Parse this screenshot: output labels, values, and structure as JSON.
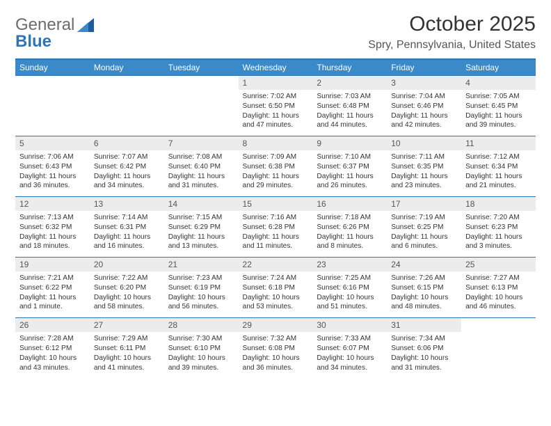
{
  "brand": {
    "line1": "General",
    "line2": "Blue"
  },
  "colors": {
    "accent": "#2e75b6",
    "header_bg": "#3a8ac9",
    "header_fg": "#ffffff",
    "daynum_bg": "#ececec",
    "text": "#333333",
    "brand_gray": "#6b6b6b",
    "brand_blue": "#2e75b6"
  },
  "title": "October 2025",
  "location": "Spry, Pennsylvania, United States",
  "weekdays": [
    "Sunday",
    "Monday",
    "Tuesday",
    "Wednesday",
    "Thursday",
    "Friday",
    "Saturday"
  ],
  "weeks": [
    [
      {
        "n": "",
        "sr": "",
        "ss": "",
        "dl": ""
      },
      {
        "n": "",
        "sr": "",
        "ss": "",
        "dl": ""
      },
      {
        "n": "",
        "sr": "",
        "ss": "",
        "dl": ""
      },
      {
        "n": "1",
        "sr": "Sunrise: 7:02 AM",
        "ss": "Sunset: 6:50 PM",
        "dl": "Daylight: 11 hours and 47 minutes."
      },
      {
        "n": "2",
        "sr": "Sunrise: 7:03 AM",
        "ss": "Sunset: 6:48 PM",
        "dl": "Daylight: 11 hours and 44 minutes."
      },
      {
        "n": "3",
        "sr": "Sunrise: 7:04 AM",
        "ss": "Sunset: 6:46 PM",
        "dl": "Daylight: 11 hours and 42 minutes."
      },
      {
        "n": "4",
        "sr": "Sunrise: 7:05 AM",
        "ss": "Sunset: 6:45 PM",
        "dl": "Daylight: 11 hours and 39 minutes."
      }
    ],
    [
      {
        "n": "5",
        "sr": "Sunrise: 7:06 AM",
        "ss": "Sunset: 6:43 PM",
        "dl": "Daylight: 11 hours and 36 minutes."
      },
      {
        "n": "6",
        "sr": "Sunrise: 7:07 AM",
        "ss": "Sunset: 6:42 PM",
        "dl": "Daylight: 11 hours and 34 minutes."
      },
      {
        "n": "7",
        "sr": "Sunrise: 7:08 AM",
        "ss": "Sunset: 6:40 PM",
        "dl": "Daylight: 11 hours and 31 minutes."
      },
      {
        "n": "8",
        "sr": "Sunrise: 7:09 AM",
        "ss": "Sunset: 6:38 PM",
        "dl": "Daylight: 11 hours and 29 minutes."
      },
      {
        "n": "9",
        "sr": "Sunrise: 7:10 AM",
        "ss": "Sunset: 6:37 PM",
        "dl": "Daylight: 11 hours and 26 minutes."
      },
      {
        "n": "10",
        "sr": "Sunrise: 7:11 AM",
        "ss": "Sunset: 6:35 PM",
        "dl": "Daylight: 11 hours and 23 minutes."
      },
      {
        "n": "11",
        "sr": "Sunrise: 7:12 AM",
        "ss": "Sunset: 6:34 PM",
        "dl": "Daylight: 11 hours and 21 minutes."
      }
    ],
    [
      {
        "n": "12",
        "sr": "Sunrise: 7:13 AM",
        "ss": "Sunset: 6:32 PM",
        "dl": "Daylight: 11 hours and 18 minutes."
      },
      {
        "n": "13",
        "sr": "Sunrise: 7:14 AM",
        "ss": "Sunset: 6:31 PM",
        "dl": "Daylight: 11 hours and 16 minutes."
      },
      {
        "n": "14",
        "sr": "Sunrise: 7:15 AM",
        "ss": "Sunset: 6:29 PM",
        "dl": "Daylight: 11 hours and 13 minutes."
      },
      {
        "n": "15",
        "sr": "Sunrise: 7:16 AM",
        "ss": "Sunset: 6:28 PM",
        "dl": "Daylight: 11 hours and 11 minutes."
      },
      {
        "n": "16",
        "sr": "Sunrise: 7:18 AM",
        "ss": "Sunset: 6:26 PM",
        "dl": "Daylight: 11 hours and 8 minutes."
      },
      {
        "n": "17",
        "sr": "Sunrise: 7:19 AM",
        "ss": "Sunset: 6:25 PM",
        "dl": "Daylight: 11 hours and 6 minutes."
      },
      {
        "n": "18",
        "sr": "Sunrise: 7:20 AM",
        "ss": "Sunset: 6:23 PM",
        "dl": "Daylight: 11 hours and 3 minutes."
      }
    ],
    [
      {
        "n": "19",
        "sr": "Sunrise: 7:21 AM",
        "ss": "Sunset: 6:22 PM",
        "dl": "Daylight: 11 hours and 1 minute."
      },
      {
        "n": "20",
        "sr": "Sunrise: 7:22 AM",
        "ss": "Sunset: 6:20 PM",
        "dl": "Daylight: 10 hours and 58 minutes."
      },
      {
        "n": "21",
        "sr": "Sunrise: 7:23 AM",
        "ss": "Sunset: 6:19 PM",
        "dl": "Daylight: 10 hours and 56 minutes."
      },
      {
        "n": "22",
        "sr": "Sunrise: 7:24 AM",
        "ss": "Sunset: 6:18 PM",
        "dl": "Daylight: 10 hours and 53 minutes."
      },
      {
        "n": "23",
        "sr": "Sunrise: 7:25 AM",
        "ss": "Sunset: 6:16 PM",
        "dl": "Daylight: 10 hours and 51 minutes."
      },
      {
        "n": "24",
        "sr": "Sunrise: 7:26 AM",
        "ss": "Sunset: 6:15 PM",
        "dl": "Daylight: 10 hours and 48 minutes."
      },
      {
        "n": "25",
        "sr": "Sunrise: 7:27 AM",
        "ss": "Sunset: 6:13 PM",
        "dl": "Daylight: 10 hours and 46 minutes."
      }
    ],
    [
      {
        "n": "26",
        "sr": "Sunrise: 7:28 AM",
        "ss": "Sunset: 6:12 PM",
        "dl": "Daylight: 10 hours and 43 minutes."
      },
      {
        "n": "27",
        "sr": "Sunrise: 7:29 AM",
        "ss": "Sunset: 6:11 PM",
        "dl": "Daylight: 10 hours and 41 minutes."
      },
      {
        "n": "28",
        "sr": "Sunrise: 7:30 AM",
        "ss": "Sunset: 6:10 PM",
        "dl": "Daylight: 10 hours and 39 minutes."
      },
      {
        "n": "29",
        "sr": "Sunrise: 7:32 AM",
        "ss": "Sunset: 6:08 PM",
        "dl": "Daylight: 10 hours and 36 minutes."
      },
      {
        "n": "30",
        "sr": "Sunrise: 7:33 AM",
        "ss": "Sunset: 6:07 PM",
        "dl": "Daylight: 10 hours and 34 minutes."
      },
      {
        "n": "31",
        "sr": "Sunrise: 7:34 AM",
        "ss": "Sunset: 6:06 PM",
        "dl": "Daylight: 10 hours and 31 minutes."
      },
      {
        "n": "",
        "sr": "",
        "ss": "",
        "dl": ""
      }
    ]
  ]
}
